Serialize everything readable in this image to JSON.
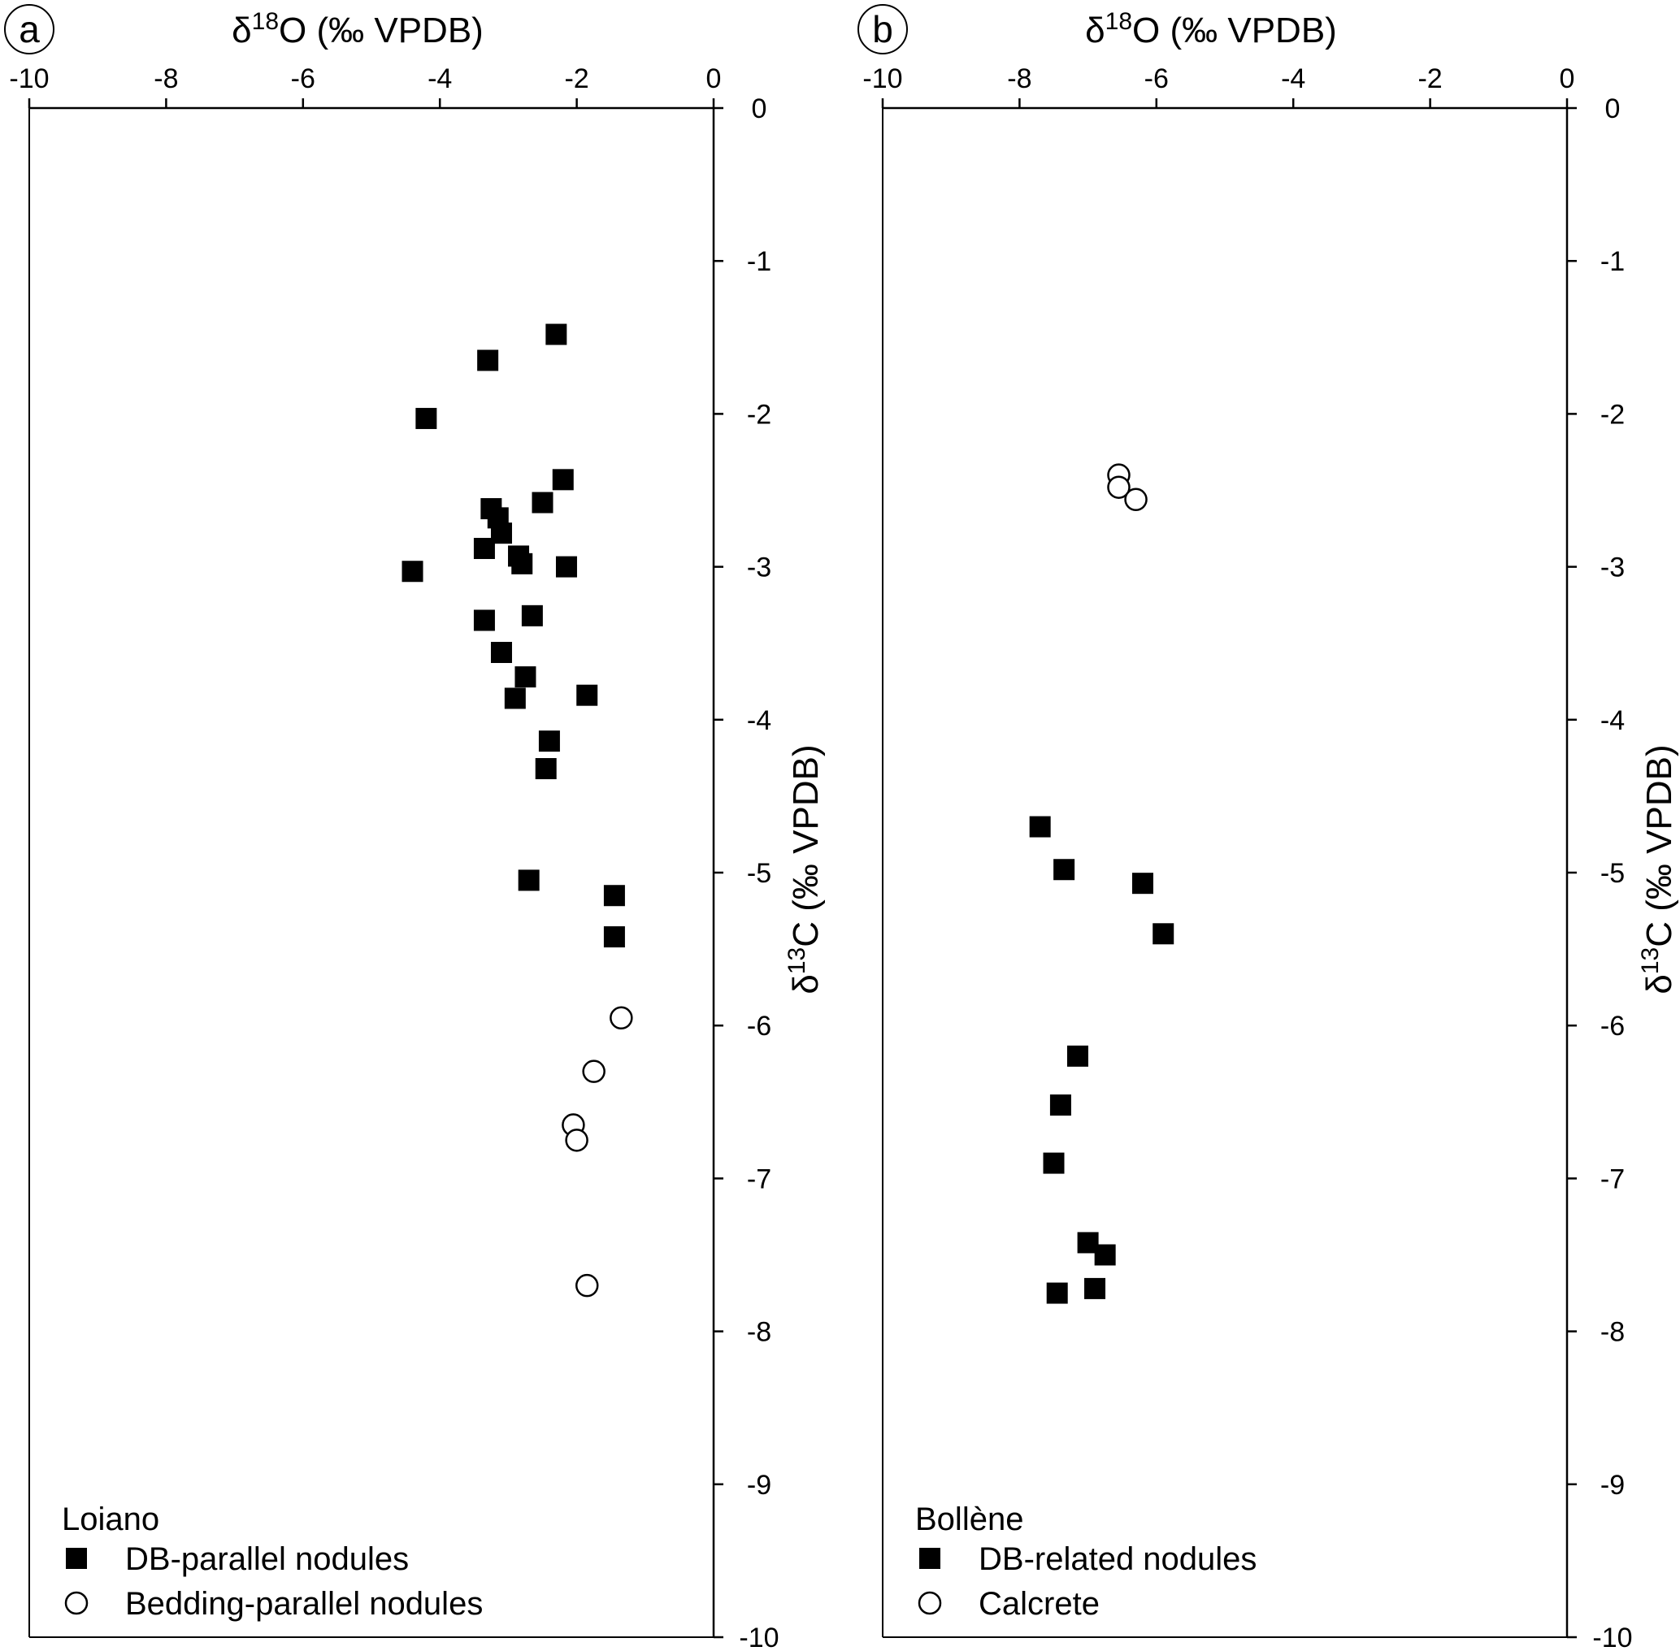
{
  "chart_data": [
    {
      "type": "scatter",
      "panel_label": "a",
      "xlabel": "δ18O (‰ VPDB)",
      "xlabel_parts": {
        "prefix": "δ",
        "sup": "18",
        "suffix": "O (‰ VPDB)"
      },
      "ylabel": "δ13C (‰ VPDB)",
      "ylabel_parts": {
        "prefix": "δ",
        "sup": "13",
        "suffix": "C (‰ VPDB)"
      },
      "xlim": [
        -10,
        0
      ],
      "ylim": [
        -10,
        0
      ],
      "x_ticks": [
        "-10",
        "-8",
        "-6",
        "-4",
        "-2",
        "0"
      ],
      "y_ticks": [
        "0",
        "-1",
        "-2",
        "-3",
        "-4",
        "-5",
        "-6",
        "-7",
        "-8",
        "-9",
        "-10"
      ],
      "x_axis_position": "top",
      "y_axis_position": "right",
      "grid": false,
      "legend_title": "Loiano",
      "legend_position": "bottom-left",
      "series": [
        {
          "name": "DB-parallel nodules",
          "marker": "filled-square",
          "points": [
            [
              -2.3,
              -1.48
            ],
            [
              -3.3,
              -1.65
            ],
            [
              -4.2,
              -2.03
            ],
            [
              -2.2,
              -2.43
            ],
            [
              -2.5,
              -2.58
            ],
            [
              -3.25,
              -2.62
            ],
            [
              -3.15,
              -2.68
            ],
            [
              -3.1,
              -2.78
            ],
            [
              -3.35,
              -2.88
            ],
            [
              -2.85,
              -2.93
            ],
            [
              -2.8,
              -2.98
            ],
            [
              -2.15,
              -3.0
            ],
            [
              -4.4,
              -3.03
            ],
            [
              -2.65,
              -3.32
            ],
            [
              -3.35,
              -3.35
            ],
            [
              -3.1,
              -3.56
            ],
            [
              -2.75,
              -3.72
            ],
            [
              -2.9,
              -3.86
            ],
            [
              -1.85,
              -3.84
            ],
            [
              -2.4,
              -4.14
            ],
            [
              -2.45,
              -4.32
            ],
            [
              -2.7,
              -5.05
            ],
            [
              -1.45,
              -5.15
            ],
            [
              -1.45,
              -5.42
            ]
          ]
        },
        {
          "name": "Bedding-parallel nodules",
          "marker": "open-circle",
          "points": [
            [
              -1.35,
              -5.95
            ],
            [
              -1.75,
              -6.3
            ],
            [
              -2.05,
              -6.65
            ],
            [
              -2.0,
              -6.75
            ],
            [
              -1.85,
              -7.7
            ]
          ]
        }
      ]
    },
    {
      "type": "scatter",
      "panel_label": "b",
      "xlabel": "δ18O (‰ VPDB)",
      "xlabel_parts": {
        "prefix": "δ",
        "sup": "18",
        "suffix": "O (‰ VPDB)"
      },
      "ylabel": "δ13C (‰ VPDB)",
      "ylabel_parts": {
        "prefix": "δ",
        "sup": "13",
        "suffix": "C (‰ VPDB)"
      },
      "xlim": [
        -10,
        0
      ],
      "ylim": [
        -10,
        0
      ],
      "x_ticks": [
        "-10",
        "-8",
        "-6",
        "-4",
        "-2",
        "0"
      ],
      "y_ticks": [
        "0",
        "-1",
        "-2",
        "-3",
        "-4",
        "-5",
        "-6",
        "-7",
        "-8",
        "-9",
        "-10"
      ],
      "x_axis_position": "top",
      "y_axis_position": "right",
      "grid": false,
      "legend_title": "Bollène",
      "legend_position": "bottom-left",
      "series": [
        {
          "name": "DB-related nodules",
          "marker": "filled-square",
          "points": [
            [
              -7.7,
              -4.7
            ],
            [
              -7.35,
              -4.98
            ],
            [
              -6.2,
              -5.07
            ],
            [
              -5.9,
              -5.4
            ],
            [
              -7.15,
              -6.2
            ],
            [
              -7.4,
              -6.52
            ],
            [
              -7.5,
              -6.9
            ],
            [
              -7.0,
              -7.42
            ],
            [
              -6.75,
              -7.5
            ],
            [
              -7.45,
              -7.75
            ],
            [
              -6.9,
              -7.72
            ]
          ]
        },
        {
          "name": "Calcrete",
          "marker": "open-circle",
          "points": [
            [
              -6.55,
              -2.4
            ],
            [
              -6.55,
              -2.48
            ],
            [
              -6.3,
              -2.56
            ]
          ]
        }
      ]
    }
  ]
}
